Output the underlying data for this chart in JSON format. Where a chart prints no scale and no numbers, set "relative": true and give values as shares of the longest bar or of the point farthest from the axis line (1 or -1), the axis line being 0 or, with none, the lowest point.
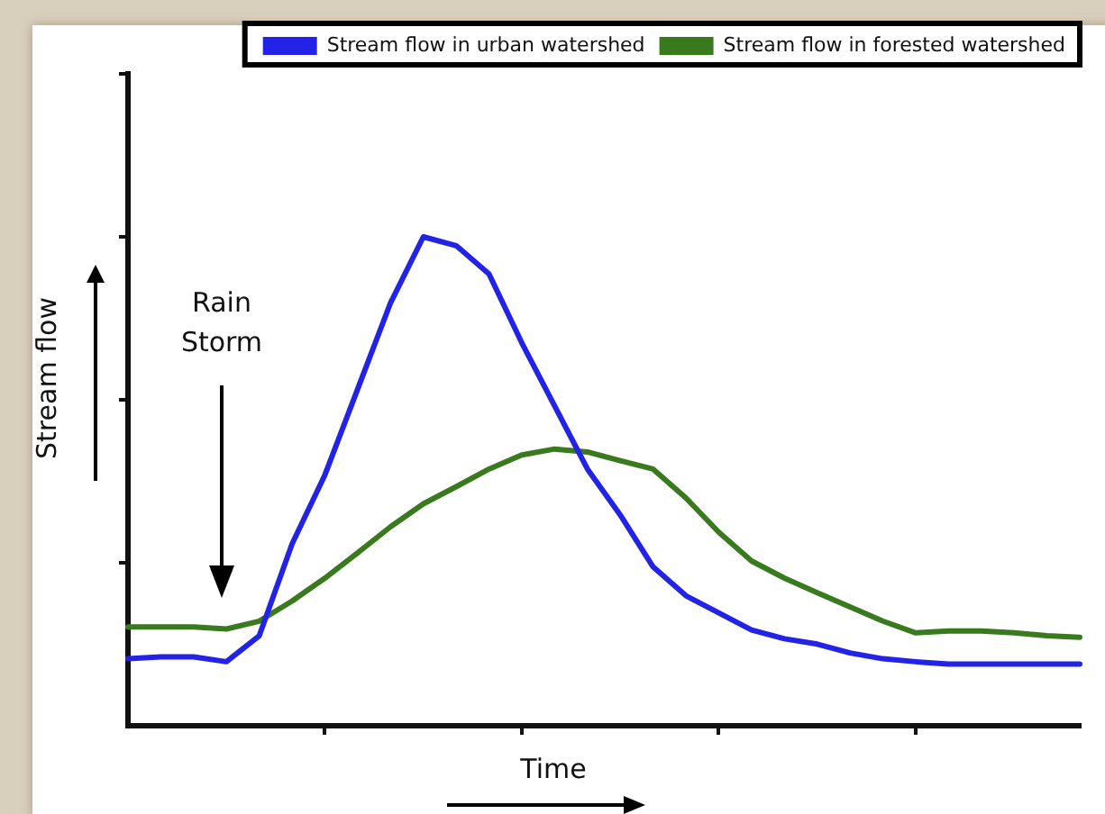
{
  "chart_data": {
    "type": "line",
    "xlabel": "Time",
    "ylabel": "Stream flow",
    "annotations": [
      "Rain Storm"
    ],
    "relative": true,
    "legend": "top right",
    "marker": "none",
    "categories": [
      null,
      null,
      null,
      null,
      null,
      null,
      null,
      null,
      null,
      null,
      null,
      null,
      null,
      null,
      null,
      null,
      null,
      null,
      null,
      null,
      null,
      null,
      null,
      null,
      null,
      null,
      null,
      null,
      null,
      null
    ],
    "series": [
      {
        "name": "Stream flow in urban watershed",
        "color": "#2323e8",
        "values": [
          0.137,
          0.141,
          0.141,
          0.131,
          0.184,
          0.372,
          0.513,
          0.689,
          0.865,
          1,
          0.982,
          0.924,
          0.783,
          0.654,
          0.525,
          0.431,
          0.325,
          0.266,
          0.231,
          0.196,
          0.178,
          0.167,
          0.149,
          0.137,
          0.131,
          0.126,
          0.126,
          0.126,
          0.126,
          0.126
        ]
      },
      {
        "name": "Stream flow in forested watershed",
        "color": "#3a7a1e",
        "values": [
          0.202,
          0.202,
          0.202,
          0.198,
          0.214,
          0.255,
          0.302,
          0.354,
          0.407,
          0.454,
          0.489,
          0.525,
          0.554,
          0.566,
          0.56,
          0.542,
          0.525,
          0.466,
          0.396,
          0.337,
          0.302,
          0.272,
          0.243,
          0.214,
          0.19,
          0.194,
          0.194,
          0.19,
          0.184,
          0.181
        ]
      }
    ]
  }
}
